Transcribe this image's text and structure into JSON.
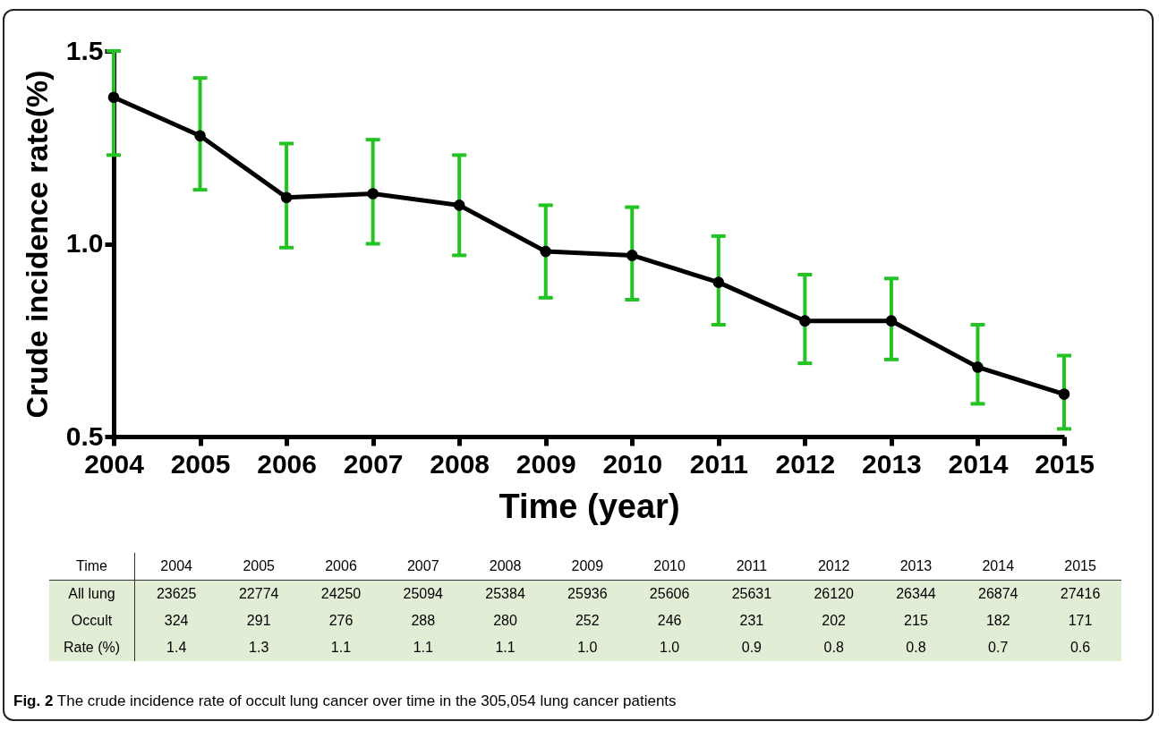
{
  "chart_data": {
    "type": "line",
    "xlabel": "Time (year)",
    "ylabel": "Crude incidence rate(%)",
    "categories": [
      "2004",
      "2005",
      "2006",
      "2007",
      "2008",
      "2009",
      "2010",
      "2011",
      "2012",
      "2013",
      "2014",
      "2015"
    ],
    "series": [
      {
        "color": "#000000",
        "values": [
          1.38,
          1.28,
          1.12,
          1.13,
          1.1,
          0.98,
          0.97,
          0.9,
          0.8,
          0.8,
          0.68,
          0.61
        ],
        "errors": [
          [
            1.23,
            1.5
          ],
          [
            1.14,
            1.43
          ],
          [
            0.99,
            1.26
          ],
          [
            1.0,
            1.27
          ],
          [
            0.97,
            1.23
          ],
          [
            0.86,
            1.1
          ],
          [
            0.855,
            1.095
          ],
          [
            0.79,
            1.02
          ],
          [
            0.69,
            0.92
          ],
          [
            0.7,
            0.91
          ],
          [
            0.585,
            0.79
          ],
          [
            0.52,
            0.71
          ]
        ]
      }
    ],
    "ylim": [
      0.5,
      1.5
    ],
    "yticks": [
      {
        "value": 0.5,
        "label": "0.5"
      },
      {
        "value": 1.0,
        "label": "1.0"
      },
      {
        "value": 1.5,
        "label": "1.5"
      }
    ],
    "marker": "circle",
    "line_style": "solid",
    "annotations": [
      "Time",
      "All lung",
      "23625",
      "22774",
      "24250",
      "25094",
      "25384",
      "25936",
      "25606",
      "25631",
      "26120",
      "26344",
      "26874",
      "27416",
      "Occult",
      "324",
      "291",
      "276",
      "288",
      "280",
      "252",
      "246",
      "231",
      "202",
      "215",
      "182",
      "171",
      "Rate (%)",
      "1.4",
      "1.3",
      "1.1",
      "1.1",
      "1.1",
      "1.0",
      "1.0",
      "0.9",
      "0.8",
      "0.8",
      "0.7",
      "0.6",
      "Fig. 2 The crude incidence rate of occult lung cancer over time in the 305,054 lung cancer patients"
    ]
  }
}
